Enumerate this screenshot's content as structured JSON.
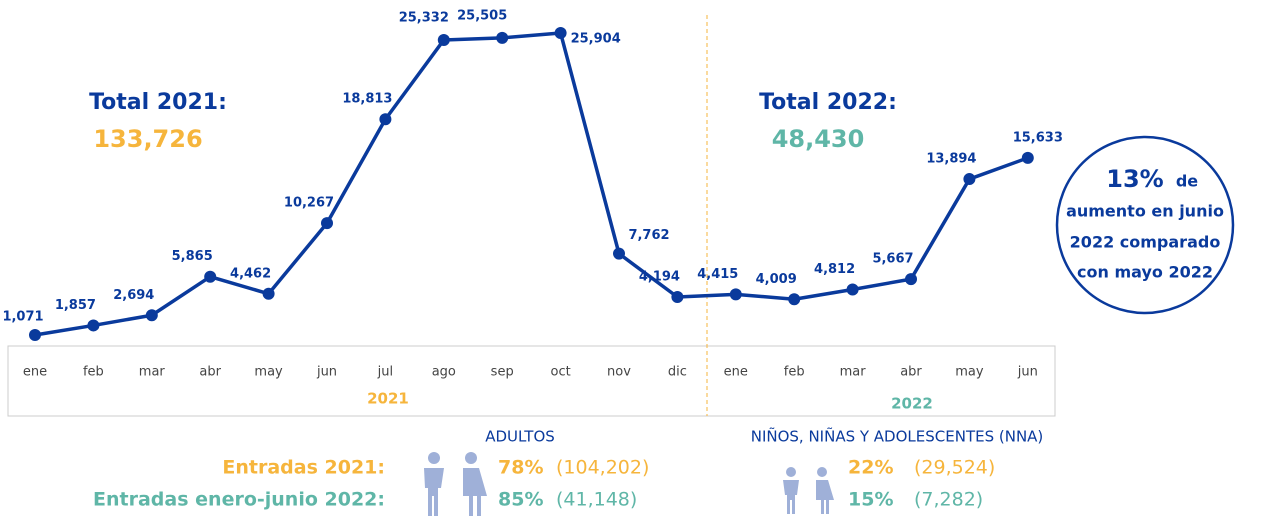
{
  "chart_data": {
    "type": "line",
    "categories": [
      "ene",
      "feb",
      "mar",
      "abr",
      "may",
      "jun",
      "jul",
      "ago",
      "sep",
      "oct",
      "nov",
      "dic",
      "ene",
      "feb",
      "mar",
      "abr",
      "may",
      "jun"
    ],
    "values": [
      1071,
      1857,
      2694,
      5865,
      4462,
      10267,
      18813,
      25332,
      25505,
      25904,
      7762,
      4194,
      4415,
      4009,
      4812,
      5667,
      13894,
      15633
    ],
    "value_labels": [
      "1,071",
      "1,857",
      "2,694",
      "5,865",
      "4,462",
      "10,267",
      "18,813",
      "25,332",
      "25,505",
      "25,904",
      "7,762",
      "4,194",
      "4,415",
      "4,009",
      "4,812",
      "5,667",
      "13,894",
      "15,633"
    ],
    "color": "#0a3a9c",
    "year_labels": [
      "2021",
      "2022"
    ],
    "annotations": {
      "total_2021": {
        "label": "Total 2021:",
        "value": "133,726"
      },
      "total_2022": {
        "label": "Total 2022:",
        "value": "48,430"
      },
      "callout": {
        "pct": "13%",
        "word": "de",
        "lines": [
          "aumento en junio",
          "2022 comparado",
          "con mayo 2022"
        ]
      }
    }
  },
  "stats": {
    "adults_title": "ADULTOS",
    "nna_title": "NIÑOS, NIÑAS Y ADOLESCENTES (NNA)",
    "rows": [
      {
        "label": "Entradas 2021:",
        "adults_pct": "78%",
        "adults_count": "(104,202)",
        "nna_pct": "22%",
        "nna_count": "(29,524)"
      },
      {
        "label": "Entradas enero-junio 2022:",
        "adults_pct": "85%",
        "adults_count": "(41,148)",
        "nna_pct": "15%",
        "nna_count": "(7,282)"
      }
    ]
  }
}
